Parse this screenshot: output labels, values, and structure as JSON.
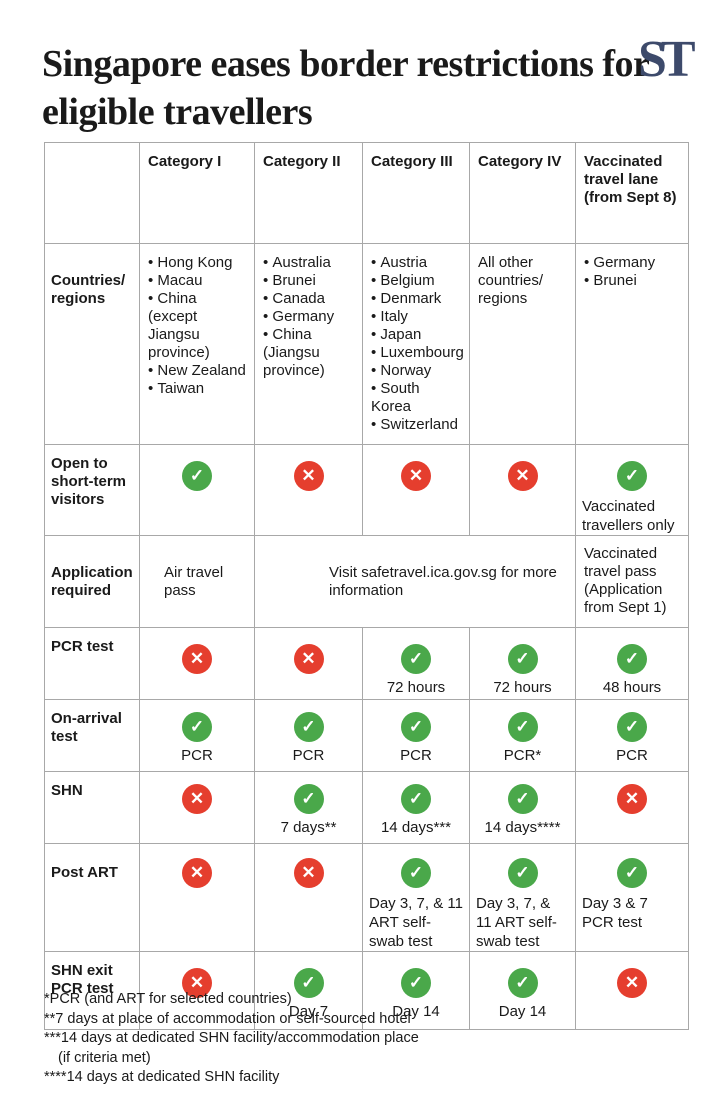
{
  "title": "Singapore eases border restrictions for eligible travellers",
  "logo": "ST",
  "columns": [
    "Category I",
    "Category II",
    "Category III",
    "Category IV",
    "Vaccinated travel lane (from Sept 8)"
  ],
  "rows": {
    "countries": {
      "label": "Countries/ regions",
      "cat1": [
        "Hong Kong",
        "Macau",
        "China (except Jiangsu province)",
        "New Zealand",
        "Taiwan"
      ],
      "cat2": [
        "Australia",
        "Brunei",
        "Canada",
        "Germany",
        "China (Jiangsu province)"
      ],
      "cat3": [
        "Austria",
        "Belgium",
        "Denmark",
        "Italy",
        "Japan",
        "Luxembourg",
        "Norway",
        "South Korea",
        "Switzerland"
      ],
      "cat4": "All other countries/ regions",
      "vtl": [
        "Germany",
        "Brunei"
      ]
    },
    "open": {
      "label": "Open to short-term visitors",
      "vtl_note": "Vaccinated travellers only"
    },
    "application": {
      "label": "Application required",
      "cat1": "Air travel pass",
      "middle": "Visit safetravel.ica.gov.sg for more information",
      "vtl": "Vaccinated travel pass (Application from Sept 1)"
    },
    "pcr": {
      "label": "PCR test",
      "cat3": "72 hours",
      "cat4": "72 hours",
      "vtl": "48 hours"
    },
    "onarrival": {
      "label": "On-arrival test",
      "cat1": "PCR",
      "cat2": "PCR",
      "cat3": "PCR",
      "cat4": "PCR*",
      "vtl": "PCR"
    },
    "shn": {
      "label": "SHN",
      "cat2": "7 days**",
      "cat3": "14 days***",
      "cat4": "14 days****"
    },
    "postart": {
      "label": "Post ART",
      "cat3": "Day 3, 7, & 11 ART self-swab test",
      "cat4": "Day 3, 7, & 11 ART self-swab test",
      "vtl": "Day 3 & 7 PCR test"
    },
    "exitpcr": {
      "label": "SHN exit PCR test",
      "cat2": "Day 7",
      "cat3": "Day 14",
      "cat4": "Day 14"
    }
  },
  "footnotes": [
    "*PCR (and ART for selected countries)",
    "**7 days at place of accommodation or self-sourced hotel",
    "***14 days at dedicated SHN facility/accommodation place",
    "(if criteria met)",
    "****14 days at dedicated SHN facility"
  ],
  "icons": {
    "check": "✓",
    "cross": "✕"
  },
  "colors": {
    "check": "#4aa84a",
    "cross": "#e53e2e",
    "logo": "#3d4a6b"
  }
}
